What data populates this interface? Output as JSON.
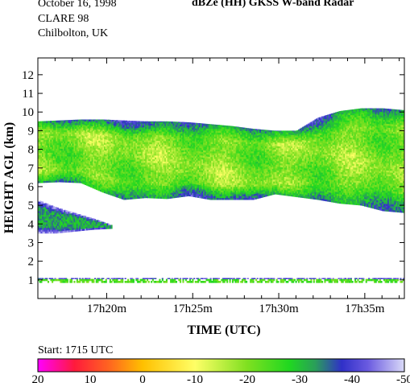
{
  "header": {
    "date": "October 16, 1998",
    "campaign": "CLARE 98",
    "location": "Chilbolton, UK",
    "title": "dBZe (HH)   GKSS  W-band Radar"
  },
  "start_label": "Start: 1715 UTC",
  "chart_data": {
    "type": "heatmap",
    "title": "dBZe (HH)   GKSS  W-band Radar",
    "xlabel": "TIME (UTC)",
    "ylabel": "HEIGHT AGL (km)",
    "x_tick_labels": [
      "17h20m",
      "17h25m",
      "17h30m",
      "17h35m"
    ],
    "x_tick_minutes": [
      20,
      25,
      30,
      35
    ],
    "xlim_minutes": [
      16.0,
      37.3
    ],
    "y_ticks": [
      1,
      2,
      3,
      4,
      5,
      6,
      7,
      8,
      9,
      10,
      11,
      12
    ],
    "ylim_km": [
      0.0,
      12.9
    ],
    "colorbar": {
      "tick_labels": [
        "20",
        "10",
        "0",
        "-10",
        "-20",
        "-30",
        "-40",
        "-50"
      ],
      "range_dbz": [
        20,
        -50
      ],
      "stops": [
        {
          "dbz": 20,
          "color": "#ff00ff"
        },
        {
          "dbz": 13,
          "color": "#ff1a3c"
        },
        {
          "dbz": 6,
          "color": "#ff6a1e"
        },
        {
          "dbz": 0,
          "color": "#ffc000"
        },
        {
          "dbz": -10,
          "color": "#ffff66"
        },
        {
          "dbz": -20,
          "color": "#7fe020"
        },
        {
          "dbz": -28,
          "color": "#20d820"
        },
        {
          "dbz": -33,
          "color": "#2a9e5a"
        },
        {
          "dbz": -38,
          "color": "#3030c8"
        },
        {
          "dbz": -43,
          "color": "#6a5ae0"
        },
        {
          "dbz": -50,
          "color": "#dadaf8"
        }
      ]
    },
    "regions": [
      {
        "feature": "upper cloud",
        "t_start": 16.0,
        "t_end": 37.3,
        "top_km": [
          9.5,
          9.55,
          9.6,
          9.6,
          9.55,
          9.5,
          9.5,
          9.45,
          9.35,
          9.25,
          9.1,
          9.0,
          9.0,
          9.7,
          10.05,
          10.2,
          10.2,
          10.1
        ],
        "bottom_km": [
          6.2,
          6.25,
          6.2,
          5.7,
          5.3,
          5.4,
          5.35,
          5.5,
          5.3,
          5.3,
          5.3,
          5.6,
          5.45,
          5.3,
          5.1,
          5.0,
          4.7,
          4.6
        ],
        "core_dbz": -20
      },
      {
        "feature": "lower cloud",
        "t_start": 16.0,
        "t_end": 20.3,
        "top_km": [
          5.3,
          4.9,
          4.6,
          4.3,
          3.95
        ],
        "bottom_km": [
          3.5,
          3.5,
          3.6,
          3.7,
          3.75
        ],
        "core_dbz": -32
      },
      {
        "feature": "surface clutter",
        "t_start": 16.0,
        "t_end": 37.3,
        "top_km": 1.1,
        "bottom_km": 0.85,
        "core_dbz": -24
      }
    ]
  }
}
